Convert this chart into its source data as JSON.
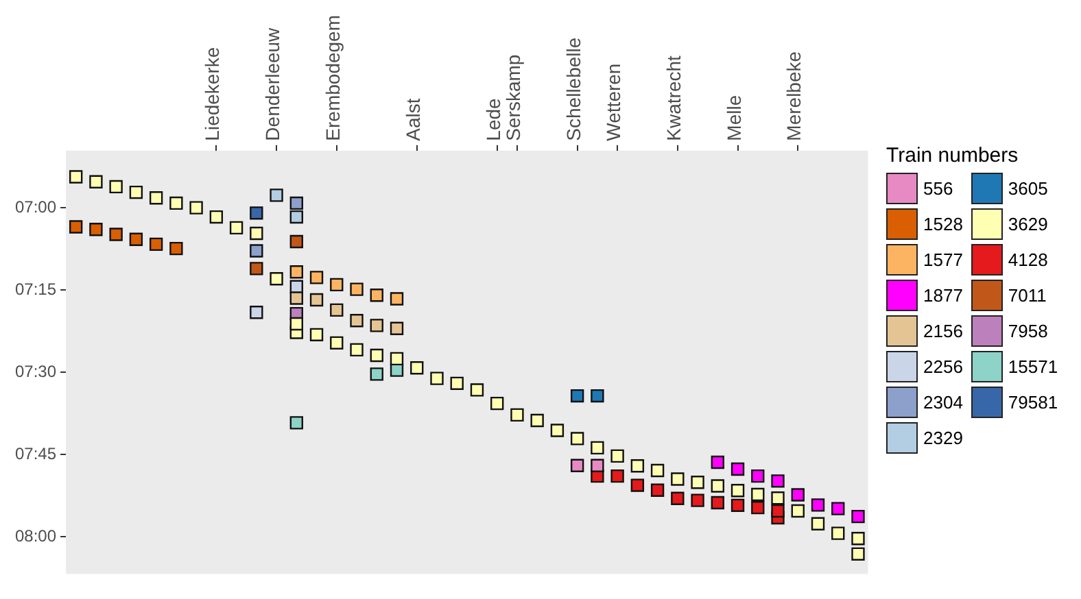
{
  "chart_data": {
    "type": "scatter",
    "legend_title": "Train numbers",
    "categories": [
      null,
      null,
      null,
      null,
      null,
      null,
      null,
      "Liedekerke",
      null,
      null,
      "Denderleeuw",
      null,
      null,
      "Erembodegem",
      null,
      null,
      null,
      "Aalst",
      null,
      null,
      null,
      "Lede",
      "Serskamp",
      null,
      null,
      "Schellebelle",
      null,
      "Wetteren",
      null,
      null,
      "Kwatrecht",
      null,
      null,
      "Melle",
      null,
      null,
      "Merelbeke",
      null,
      null,
      null
    ],
    "ylim": [
      8.114,
      6.826
    ],
    "yticks": [
      {
        "value": 7.0,
        "label": "07:00"
      },
      {
        "value": 7.25,
        "label": "07:15"
      },
      {
        "value": 7.5,
        "label": "07:30"
      },
      {
        "value": 7.75,
        "label": "07:45"
      },
      {
        "value": 8.0,
        "label": "08:00"
      }
    ],
    "grid": false,
    "legend": "right",
    "marker": "square",
    "series": [
      {
        "name": "556",
        "color": "#e78ac3",
        "values": [
          null,
          null,
          null,
          null,
          null,
          null,
          null,
          null,
          null,
          null,
          null,
          null,
          null,
          null,
          null,
          null,
          null,
          null,
          null,
          null,
          null,
          null,
          null,
          null,
          null,
          7.784,
          7.784,
          null,
          null,
          null,
          null,
          null,
          null,
          null,
          null,
          null,
          null,
          null,
          null,
          null
        ]
      },
      {
        "name": "1528",
        "color": "#d95f02",
        "values": [
          7.058,
          7.066,
          7.081,
          7.096,
          7.111,
          7.124,
          null,
          null,
          null,
          null,
          null,
          null,
          null,
          null,
          null,
          null,
          null,
          null,
          null,
          null,
          null,
          null,
          null,
          null,
          null,
          null,
          null,
          null,
          null,
          null,
          null,
          null,
          null,
          null,
          null,
          null,
          null,
          null,
          null,
          null
        ]
      },
      {
        "name": "1577",
        "color": "#fdb462",
        "values": [
          null,
          null,
          null,
          null,
          null,
          null,
          null,
          null,
          null,
          null,
          null,
          7.195,
          7.212,
          7.234,
          7.248,
          7.266,
          7.277,
          null,
          null,
          null,
          null,
          null,
          null,
          null,
          null,
          null,
          null,
          null,
          null,
          null,
          null,
          null,
          null,
          null,
          null,
          null,
          null,
          null,
          null,
          null
        ]
      },
      {
        "name": "1877",
        "color": "#ff00ff",
        "values": [
          null,
          null,
          null,
          null,
          null,
          null,
          null,
          null,
          null,
          null,
          null,
          null,
          null,
          null,
          null,
          null,
          null,
          null,
          null,
          null,
          null,
          null,
          null,
          null,
          null,
          null,
          null,
          null,
          null,
          null,
          null,
          null,
          7.774,
          7.795,
          7.816,
          7.831,
          7.873,
          7.904,
          7.915,
          7.939
        ]
      },
      {
        "name": "2156",
        "color": "#e5c494",
        "values": [
          null,
          null,
          null,
          null,
          null,
          null,
          null,
          null,
          null,
          null,
          null,
          7.275,
          7.28,
          7.311,
          7.343,
          7.358,
          7.367,
          null,
          null,
          null,
          null,
          null,
          null,
          null,
          null,
          null,
          null,
          null,
          null,
          null,
          null,
          null,
          null,
          null,
          null,
          null,
          null,
          null,
          null,
          null
        ]
      },
      {
        "name": "2256",
        "color": "#cbd5e8",
        "values": [
          null,
          null,
          null,
          null,
          null,
          null,
          null,
          null,
          null,
          7.318,
          null,
          7.24,
          null,
          null,
          null,
          null,
          null,
          null,
          null,
          null,
          null,
          null,
          null,
          null,
          null,
          null,
          null,
          null,
          null,
          null,
          null,
          null,
          null,
          null,
          null,
          null,
          null,
          null,
          null,
          null
        ]
      },
      {
        "name": "2304",
        "color": "#8da0cb",
        "values": [
          null,
          null,
          null,
          null,
          null,
          null,
          null,
          null,
          null,
          7.131,
          null,
          6.986,
          null,
          null,
          null,
          null,
          null,
          null,
          null,
          null,
          null,
          null,
          null,
          null,
          null,
          null,
          null,
          null,
          null,
          null,
          null,
          null,
          null,
          null,
          null,
          null,
          null,
          null,
          null,
          null
        ]
      },
      {
        "name": "2329",
        "color": "#b3cde3",
        "values": [
          null,
          null,
          null,
          null,
          null,
          null,
          null,
          null,
          null,
          null,
          6.962,
          7.028,
          null,
          null,
          null,
          null,
          null,
          null,
          null,
          null,
          null,
          null,
          null,
          null,
          null,
          null,
          null,
          null,
          null,
          null,
          null,
          null,
          null,
          null,
          null,
          null,
          null,
          null,
          null,
          null
        ]
      },
      {
        "name": "3605",
        "color": "#1f78b4",
        "values": [
          null,
          null,
          null,
          null,
          null,
          null,
          null,
          null,
          null,
          null,
          null,
          null,
          null,
          null,
          null,
          null,
          null,
          null,
          null,
          null,
          null,
          null,
          null,
          null,
          null,
          7.572,
          7.572,
          null,
          null,
          null,
          null,
          null,
          null,
          null,
          null,
          null,
          null,
          null,
          null,
          null
        ]
      },
      {
        "name": "3629",
        "color": "#ffffb3",
        "values": [
          6.906,
          6.921,
          6.936,
          6.953,
          6.97,
          6.986,
          7.0,
          7.028,
          7.061,
          7.078,
          7.216,
          7.353,
          7.386,
          7.411,
          7.432,
          7.449,
          7.459,
          7.487,
          7.519,
          7.534,
          7.554,
          7.595,
          7.63,
          7.647,
          7.677,
          7.702,
          7.73,
          7.755,
          7.785,
          7.799,
          7.825,
          7.835,
          7.846,
          7.86,
          7.872,
          7.883,
          7.922,
          7.961,
          7.99,
          8.006
        ]
      },
      {
        "color": "#ffffb3",
        "values": [
          null,
          null,
          null,
          null,
          null,
          null,
          null,
          null,
          null,
          null,
          null,
          7.379,
          null,
          null,
          null,
          null,
          null,
          null,
          null,
          null,
          null,
          null,
          null,
          null,
          null,
          null,
          null,
          null,
          null,
          null,
          null,
          null,
          null,
          null,
          null,
          null,
          null,
          null,
          null,
          8.053
        ]
      },
      {
        "name": "4128",
        "color": "#e41a1c",
        "values": [
          null,
          null,
          null,
          null,
          null,
          null,
          null,
          null,
          null,
          null,
          null,
          null,
          null,
          null,
          null,
          null,
          null,
          null,
          null,
          null,
          null,
          null,
          null,
          null,
          null,
          null,
          7.816,
          7.816,
          7.844,
          7.859,
          7.884,
          7.89,
          7.897,
          7.905,
          7.912,
          7.922,
          null,
          null,
          null,
          null
        ]
      },
      {
        "color": "#e41a1c",
        "values": [
          null,
          null,
          null,
          null,
          null,
          null,
          null,
          null,
          null,
          null,
          null,
          null,
          null,
          null,
          null,
          null,
          null,
          null,
          null,
          null,
          null,
          null,
          null,
          null,
          null,
          null,
          null,
          null,
          null,
          null,
          null,
          null,
          null,
          null,
          null,
          7.943,
          null,
          null,
          null,
          null
        ]
      },
      {
        "name": "7011",
        "color": "#c2571a",
        "values": [
          null,
          null,
          null,
          null,
          null,
          null,
          null,
          null,
          null,
          7.185,
          null,
          7.103,
          null,
          null,
          null,
          null,
          null,
          null,
          null,
          null,
          null,
          null,
          null,
          null,
          null,
          null,
          null,
          null,
          null,
          null,
          null,
          null,
          null,
          null,
          null,
          null,
          null,
          null,
          null,
          null
        ]
      },
      {
        "name": "7958",
        "color": "#bc80bd",
        "values": [
          null,
          null,
          null,
          null,
          null,
          null,
          null,
          null,
          null,
          null,
          null,
          7.322,
          null,
          null,
          null,
          null,
          null,
          null,
          null,
          null,
          null,
          null,
          null,
          null,
          null,
          null,
          null,
          null,
          null,
          null,
          null,
          null,
          null,
          null,
          null,
          null,
          null,
          null,
          null,
          null
        ]
      },
      {
        "name": "15571",
        "color": "#8dd3c7",
        "values": [
          null,
          null,
          null,
          null,
          null,
          null,
          null,
          null,
          null,
          null,
          null,
          7.654,
          null,
          null,
          null,
          7.506,
          7.494,
          null,
          null,
          null,
          null,
          null,
          null,
          null,
          null,
          null,
          null,
          null,
          null,
          null,
          null,
          null,
          null,
          null,
          null,
          null,
          null,
          null,
          null,
          null
        ]
      },
      {
        "name": "79581",
        "color": "#3867a9",
        "values": [
          null,
          null,
          null,
          null,
          null,
          null,
          null,
          null,
          null,
          7.016,
          null,
          null,
          null,
          null,
          null,
          null,
          null,
          null,
          null,
          null,
          null,
          null,
          null,
          null,
          null,
          null,
          null,
          null,
          null,
          null,
          null,
          null,
          null,
          null,
          null,
          null,
          null,
          null,
          null,
          null
        ]
      }
    ]
  }
}
